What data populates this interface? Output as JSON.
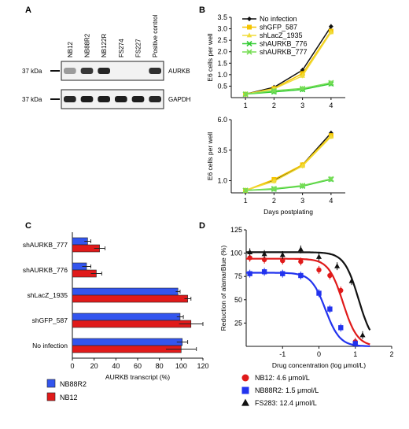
{
  "panels": {
    "A": {
      "letter": "A",
      "lanes": [
        "NB12",
        "NB88R2",
        "NB122R",
        "FS274",
        "FS227",
        "Positive control"
      ],
      "blots": [
        {
          "marker": "37 kDa",
          "protein": "AURKB",
          "intensities": [
            0.25,
            0.8,
            0.9,
            0.0,
            0.0,
            0.85
          ]
        },
        {
          "marker": "37 kDa",
          "protein": "GAPDH",
          "intensities": [
            0.9,
            0.95,
            0.95,
            0.95,
            0.95,
            0.9
          ]
        }
      ]
    },
    "B": {
      "letter": "B"
    },
    "C": {
      "letter": "C"
    },
    "D": {
      "letter": "D"
    }
  },
  "chart_data": [
    {
      "id": "B-top",
      "type": "line",
      "x": [
        1,
        2,
        3,
        4
      ],
      "xticks": [
        "1",
        "2",
        "3",
        "4"
      ],
      "xlim": [
        0.5,
        4.5
      ],
      "ylim": [
        0,
        3.5
      ],
      "yticks": [
        "0.5",
        "1.0",
        "1.5",
        "2.0",
        "2.5",
        "3.0",
        "3.5"
      ],
      "ylabel": "E6 cells per well",
      "legend_position": "top-left",
      "series": [
        {
          "name": "No infection",
          "color": "#111111",
          "marker": "diamond",
          "values": [
            0.15,
            0.45,
            1.2,
            3.1
          ]
        },
        {
          "name": "shGFP_587",
          "color": "#f5c400",
          "marker": "square",
          "values": [
            0.15,
            0.4,
            1.05,
            2.9
          ]
        },
        {
          "name": "shLacZ_1935",
          "color": "#f0dc3a",
          "marker": "triangle",
          "values": [
            0.15,
            0.38,
            0.95,
            2.85
          ]
        },
        {
          "name": "shAURKB_776",
          "color": "#33cc33",
          "marker": "x",
          "values": [
            0.15,
            0.25,
            0.35,
            0.6
          ]
        },
        {
          "name": "shAURKB_777",
          "color": "#77dd55",
          "marker": "x",
          "values": [
            0.15,
            0.3,
            0.4,
            0.65
          ]
        }
      ]
    },
    {
      "id": "B-bottom",
      "type": "line",
      "x": [
        1,
        2,
        3,
        4
      ],
      "xticks": [
        "1",
        "2",
        "3",
        "4"
      ],
      "xlim": [
        0.5,
        4.5
      ],
      "ylim": [
        0,
        6.0
      ],
      "yticks": [
        "1.0",
        "3.5",
        "6.0"
      ],
      "ylabel": "E6 cells per well",
      "xlabel": "Days postplating",
      "series": [
        {
          "color": "#111111",
          "marker": "diamond",
          "values": [
            0.2,
            1.0,
            2.3,
            4.9
          ]
        },
        {
          "color": "#f5c400",
          "marker": "square",
          "values": [
            0.2,
            1.1,
            2.3,
            4.7
          ]
        },
        {
          "color": "#f0dc3a",
          "marker": "triangle",
          "values": [
            0.2,
            0.95,
            2.2,
            4.6
          ]
        },
        {
          "color": "#33cc33",
          "marker": "x",
          "values": [
            0.2,
            0.3,
            0.55,
            1.1
          ]
        },
        {
          "color": "#77dd55",
          "marker": "x",
          "values": [
            0.2,
            0.35,
            0.6,
            1.15
          ]
        }
      ]
    },
    {
      "id": "C",
      "type": "bar",
      "orientation": "horizontal",
      "categories": [
        "shAURKB_777",
        "shAURKB_776",
        "shLacZ_1935",
        "shGFP_587",
        "No infection"
      ],
      "xlim": [
        0,
        120
      ],
      "xticks": [
        "0",
        "20",
        "40",
        "60",
        "80",
        "100",
        "120"
      ],
      "xlabel": "AURKB transcript (%)",
      "series": [
        {
          "name": "NB88R2",
          "color": "#3355ee",
          "values": [
            14,
            13,
            97,
            99,
            101
          ],
          "errors": [
            3,
            4,
            2,
            3,
            5
          ]
        },
        {
          "name": "NB12",
          "color": "#e01a1a",
          "values": [
            25,
            22,
            106,
            109,
            100
          ],
          "errors": [
            5,
            5,
            3,
            11,
            14
          ]
        }
      ]
    },
    {
      "id": "D",
      "type": "scatter",
      "xlim": [
        -2,
        2
      ],
      "xticks": [
        "-1",
        "0",
        "1",
        "2"
      ],
      "ylim": [
        0,
        125
      ],
      "yticks": [
        "25",
        "50",
        "75",
        "100",
        "125"
      ],
      "xlabel": "Drug concentration (log μmol/L)",
      "ylabel": "Reduction of alamarBlue (%)",
      "series": [
        {
          "name": "NB12: 4.6 μmol/L",
          "color": "#e01a1a",
          "marker": "circle",
          "x": [
            -1.9,
            -1.5,
            -1.0,
            -0.5,
            0.0,
            0.3,
            0.6,
            1.0
          ],
          "y": [
            95,
            93,
            92,
            91,
            82,
            76,
            60,
            5
          ],
          "fit_ic50_log": 0.66
        },
        {
          "name": "NB88R2: 1.5 μmol/L",
          "color": "#2233ee",
          "marker": "square",
          "x": [
            -1.9,
            -1.5,
            -1.0,
            -0.5,
            0.0,
            0.3,
            0.6,
            1.0
          ],
          "y": [
            78,
            80,
            78,
            76,
            57,
            40,
            20,
            3
          ],
          "fit_ic50_log": 0.18
        },
        {
          "name": "FS283: 12.4 μmol/L",
          "color": "#111111",
          "marker": "triangle",
          "x": [
            -1.9,
            -1.5,
            -1.0,
            -0.5,
            0.0,
            0.5,
            0.9,
            1.2
          ],
          "y": [
            101,
            99,
            98,
            104,
            96,
            86,
            70,
            12
          ],
          "fit_ic50_log": 1.09
        }
      ]
    }
  ]
}
